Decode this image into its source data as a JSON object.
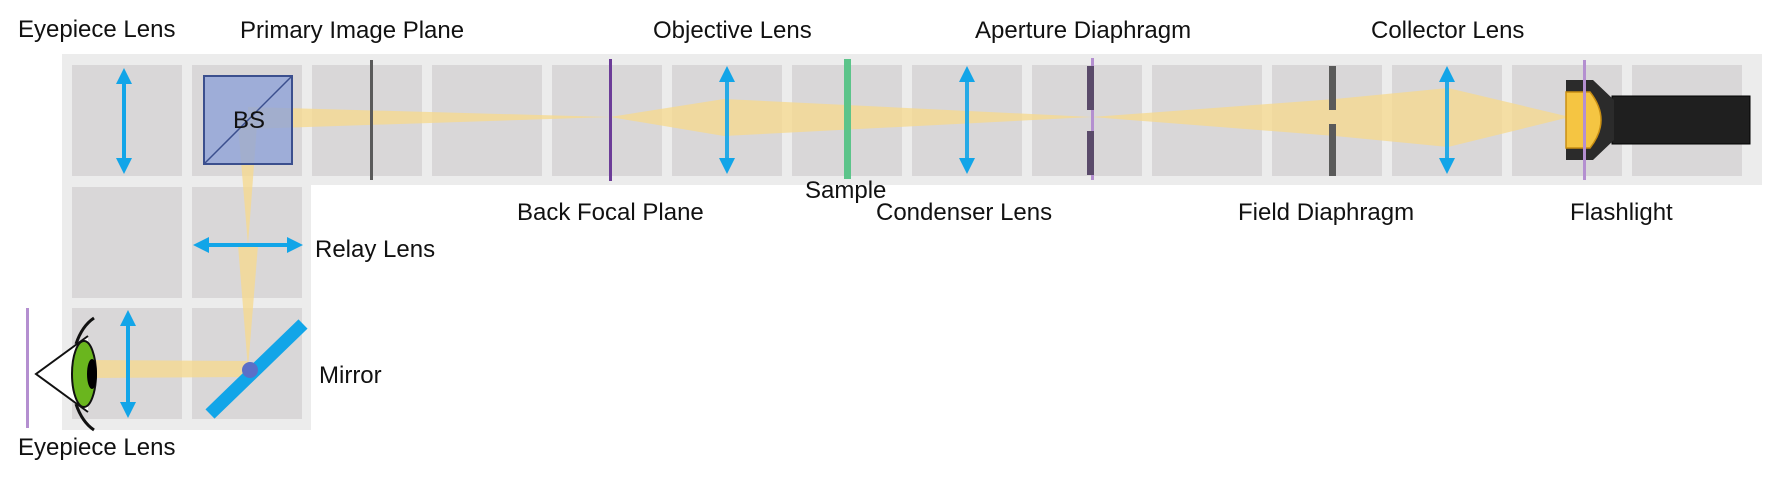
{
  "labels": {
    "eyepiece_lens_top": "Eyepiece Lens",
    "primary_image_plane": "Primary Image Plane",
    "objective_lens": "Objective Lens",
    "aperture_diaphragm": "Aperture Diaphragm",
    "collector_lens": "Collector Lens",
    "back_focal_plane": "Back Focal Plane",
    "sample": "Sample",
    "condenser_lens": "Condenser Lens",
    "field_diaphragm": "Field Diaphragm",
    "flashlight": "Flashlight",
    "relay_lens": "Relay Lens",
    "mirror": "Mirror",
    "eyepiece_lens_bottom": "Eyepiece Lens",
    "beam_splitter": "BS"
  },
  "colors": {
    "frame": "#ececec",
    "cell": "#d9d7d8",
    "light_beam": "#f7da8c",
    "lens_arrow": "#12a5e8",
    "diaphragm": "#5a5a5a",
    "plane_marker": "#6c3c98",
    "sample": "#5cc48a",
    "beam_splitter": "#8ea3d8",
    "mirror": "#12a5e8",
    "eye_iris": "#6ab61e",
    "flashlight_body": "#1f1f1f",
    "bulb": "#f5c542"
  }
}
